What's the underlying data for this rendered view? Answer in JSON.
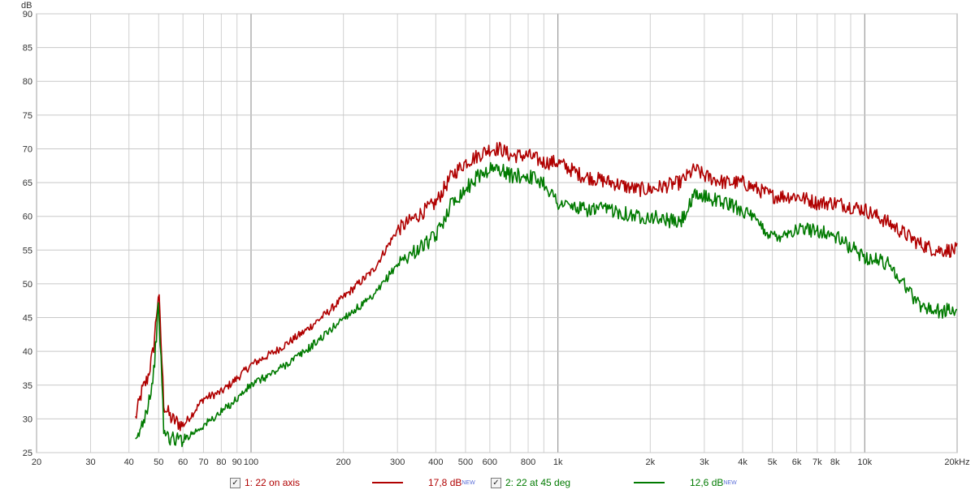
{
  "chart_data": {
    "type": "line",
    "ylabel": "dB",
    "xlabel": "",
    "xscale": "log",
    "xlim": [
      20,
      20000
    ],
    "ylim": [
      25,
      90
    ],
    "grid": true,
    "x_tick_labels": [
      "20",
      "30",
      "40",
      "50",
      "60",
      "70",
      "80",
      "90",
      "100",
      "200",
      "300",
      "400",
      "500",
      "600",
      "800",
      "1k",
      "2k",
      "3k",
      "4k",
      "5k",
      "6k",
      "7k",
      "8k",
      "10k",
      "20kHz"
    ],
    "y_ticks": [
      25,
      30,
      35,
      40,
      45,
      50,
      55,
      60,
      65,
      70,
      75,
      80,
      85,
      90
    ],
    "series": [
      {
        "name": "1: 22 on axis",
        "color": "#b00000",
        "smoothing_label": "17,8 dB",
        "x": [
          42,
          44,
          46,
          48,
          50,
          52,
          55,
          60,
          65,
          70,
          80,
          90,
          100,
          120,
          150,
          180,
          200,
          250,
          300,
          400,
          450,
          500,
          550,
          600,
          650,
          700,
          800,
          900,
          1000,
          1200,
          1500,
          1800,
          2000,
          2500,
          2800,
          3000,
          3500,
          4000,
          5000,
          6000,
          7000,
          8000,
          10000,
          12000,
          15000,
          17000,
          20000
        ],
        "y": [
          30,
          34,
          36,
          40,
          49,
          32,
          30,
          29,
          31,
          33,
          34,
          36,
          38,
          40,
          43,
          46,
          48,
          52,
          58,
          62,
          66,
          68,
          69,
          70,
          70,
          69,
          69,
          68,
          68,
          66,
          65,
          64,
          64,
          65,
          67,
          66,
          65,
          65,
          63,
          63,
          62,
          62,
          61,
          59,
          56,
          55,
          55
        ]
      },
      {
        "name": "2: 22 at 45 deg",
        "color": "#007a00",
        "smoothing_label": "12,6 dB",
        "x": [
          42,
          44,
          46,
          48,
          50,
          52,
          55,
          60,
          65,
          70,
          80,
          90,
          100,
          120,
          150,
          180,
          200,
          250,
          300,
          400,
          450,
          500,
          550,
          600,
          650,
          700,
          800,
          900,
          1000,
          1200,
          1500,
          1800,
          2000,
          2500,
          2800,
          3000,
          3500,
          4000,
          5000,
          6000,
          7000,
          8000,
          10000,
          12000,
          15000,
          17000,
          20000
        ],
        "y": [
          26,
          29,
          32,
          36,
          47,
          28,
          27,
          27,
          28,
          29,
          31,
          33,
          35,
          37,
          40,
          43,
          45,
          48,
          53,
          57,
          62,
          64,
          66,
          67,
          67,
          66,
          66,
          65,
          62,
          61,
          61,
          60,
          60,
          59,
          63,
          63,
          62,
          61,
          57,
          58,
          58,
          57,
          54,
          53,
          47,
          46,
          46
        ]
      }
    ]
  },
  "legend": [
    {
      "checked": true,
      "label": "1: 22 on axis",
      "color": "#b00000",
      "value": "17,8 dB",
      "badge": "NEW"
    },
    {
      "checked": true,
      "label": "2: 22 at 45 deg",
      "color": "#007a00",
      "value": "12,6 dB",
      "badge": "NEW"
    }
  ],
  "checkmark": "✓"
}
